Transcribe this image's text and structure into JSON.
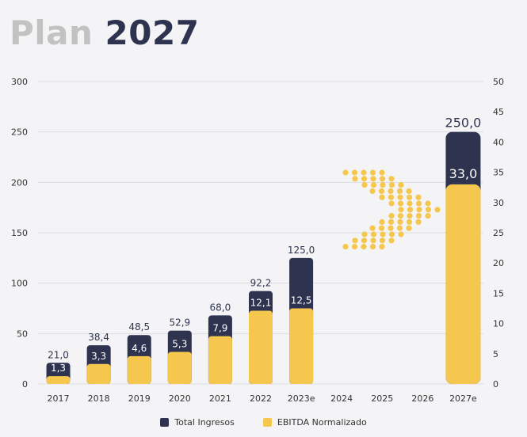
{
  "title": {
    "part1": "Plan",
    "part2": "2027"
  },
  "colors": {
    "ingresos": "#2e3450",
    "ebitda": "#f5c74e",
    "title_muted": "#c2c2c2",
    "arrow": "#f5c74e"
  },
  "chart_data": {
    "type": "bar",
    "title": "Plan 2027",
    "categories": [
      "2017",
      "2018",
      "2019",
      "2020",
      "2021",
      "2022",
      "2023e",
      "2024",
      "2025",
      "2026",
      "2027e"
    ],
    "series": [
      {
        "name": "Total Ingresos",
        "axis": "left",
        "values": [
          21.0,
          38.4,
          48.5,
          52.9,
          68.0,
          92.2,
          125.0,
          null,
          null,
          null,
          250.0
        ],
        "labels": [
          "21,0",
          "38,4",
          "48,5",
          "52,9",
          "68,0",
          "92,2",
          "125,0",
          "",
          "",
          "",
          "250,0"
        ]
      },
      {
        "name": "EBITDA Normalizado",
        "axis": "right",
        "values": [
          1.3,
          3.3,
          4.6,
          5.3,
          7.9,
          12.1,
          12.5,
          null,
          null,
          null,
          33.0
        ],
        "labels": [
          "1,3",
          "3,3",
          "4,6",
          "5,3",
          "7,9",
          "12,1",
          "12,5",
          "",
          "",
          "",
          "33,0"
        ]
      }
    ],
    "y_left": {
      "min": 0,
      "max": 300,
      "ticks": [
        "0",
        "50",
        "100",
        "150",
        "200",
        "250",
        "300"
      ]
    },
    "y_right": {
      "min": 0,
      "max": 50,
      "ticks": [
        "0",
        "5",
        "10",
        "15",
        "20",
        "25",
        "30",
        "35",
        "40",
        "45",
        "50"
      ]
    },
    "grid": true,
    "legend_position": "bottom",
    "annotation": "dotted-arrow-right"
  },
  "legend": [
    {
      "label": "Total Ingresos",
      "icon": "square-swatch"
    },
    {
      "label": "EBITDA Normalizado",
      "icon": "square-swatch"
    }
  ]
}
